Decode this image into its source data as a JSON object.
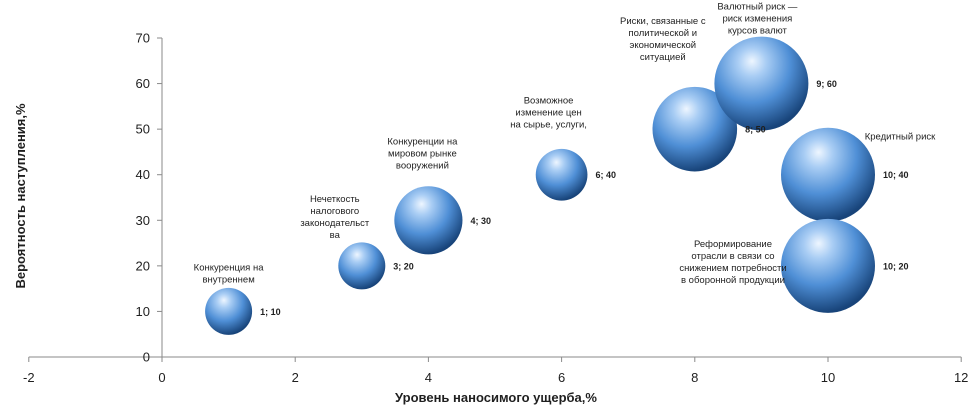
{
  "chart_data": {
    "type": "bubble",
    "xlabel": "Уровень наносимого ущерба,%",
    "ylabel": "Вероятность наступления,%",
    "xlim": [
      -2,
      12
    ],
    "ylim": [
      0,
      70
    ],
    "xticks": [
      "-2",
      "0",
      "2",
      "4",
      "6",
      "8",
      "10",
      "12"
    ],
    "yticks": [
      "0",
      "10",
      "20",
      "30",
      "40",
      "50",
      "60",
      "70"
    ],
    "grid": false,
    "bubble_color": "#4f8fd6",
    "points": [
      {
        "x": 1,
        "y": 10,
        "size": 1.0,
        "label": "1; 10",
        "annotation": [
          "Конкуренция на",
          "внутреннем"
        ]
      },
      {
        "x": 3,
        "y": 20,
        "size": 1.0,
        "label": "3; 20",
        "annotation": [
          "Нечеткость",
          "налогового",
          "законодательст",
          "ва"
        ]
      },
      {
        "x": 4,
        "y": 30,
        "size": 1.45,
        "label": "4; 30",
        "annotation": [
          "Конкуренции на",
          "мировом рынке",
          "вооружений"
        ]
      },
      {
        "x": 6,
        "y": 40,
        "size": 1.1,
        "label": "6; 40",
        "annotation": [
          "Возможное",
          "изменение цен",
          "на сырье, услуги,"
        ]
      },
      {
        "x": 8,
        "y": 50,
        "size": 1.8,
        "label": "8; 50",
        "annotation": [
          "Риски, связанные с",
          "политической и",
          "экономической",
          "ситуацией"
        ]
      },
      {
        "x": 9,
        "y": 60,
        "size": 2.0,
        "label": "9; 60",
        "annotation": [
          "Валютный риск —",
          "риск изменения",
          "курсов валют"
        ]
      },
      {
        "x": 10,
        "y": 40,
        "size": 2.0,
        "label": "10; 40",
        "annotation": [
          "Кредитный риск"
        ]
      },
      {
        "x": 10,
        "y": 20,
        "size": 2.0,
        "label": "10; 20",
        "annotation": [
          "Реформирование",
          "отрасли в связи со",
          "снижением потребности",
          "в оборонной продукции"
        ]
      }
    ]
  }
}
